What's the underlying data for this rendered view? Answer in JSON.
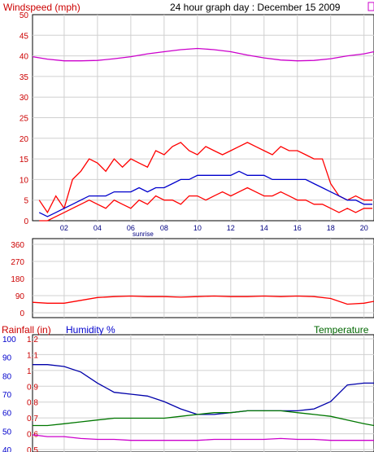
{
  "header": {
    "title": "Windspeed (mph)",
    "subtitle": "24 hour graph day : December 15 2009"
  },
  "labels": {
    "sunrise": "sunrise",
    "rainfall": "Rainfall (in)",
    "humidity": "Humidity %",
    "temperature": "Temperature"
  },
  "colors": {
    "wind": "#ff0000",
    "avg_wind": "#0000cc",
    "pressure": "#cc00cc",
    "humidity": "#0000aa",
    "temperature": "#007700",
    "grid": "#cccccc",
    "axis_red": "#cc0000"
  },
  "chart_data": [
    {
      "type": "line",
      "title": "Windspeed (mph)",
      "subtitle": "24 hour graph day : December 15 2009",
      "x_ticks": [
        "02",
        "04",
        "06",
        "08",
        "10",
        "12",
        "14",
        "16",
        "18",
        "20"
      ],
      "xlim": [
        0.1,
        20.6
      ],
      "ylim": [
        0,
        50
      ],
      "y_ticks": [
        "0",
        "5",
        "10",
        "15",
        "20",
        "25",
        "30",
        "35",
        "40",
        "45",
        "50"
      ],
      "annotation": {
        "text": "sunrise",
        "x": 7.0
      },
      "series": [
        {
          "name": "",
          "color": "#ff0000",
          "x": [
            0.5,
            1.0,
            1.5,
            2.0,
            2.5,
            3.0,
            3.5,
            4.0,
            4.5,
            5.0,
            5.5,
            6.0,
            6.5,
            7.0,
            7.5,
            8.0,
            8.5,
            9.0,
            9.5,
            10.0,
            10.5,
            11.0,
            11.5,
            12.0,
            12.5,
            13.0,
            13.5,
            14.0,
            14.5,
            15.0,
            15.5,
            16.0,
            16.5,
            17.0,
            17.5,
            18.0,
            18.5,
            19.0,
            19.5,
            20.0,
            20.5
          ],
          "values": [
            5,
            2,
            6,
            3,
            10,
            12,
            15,
            14,
            12,
            15,
            13,
            15,
            14,
            13,
            17,
            16,
            18,
            19,
            17,
            16,
            18,
            17,
            16,
            17,
            18,
            19,
            18,
            17,
            16,
            18,
            17,
            17,
            16,
            15,
            15,
            9,
            6,
            5,
            6,
            5,
            5
          ]
        },
        {
          "name": "",
          "color": "#ff0000",
          "x": [
            0.5,
            1.0,
            1.5,
            2.0,
            2.5,
            3.0,
            3.5,
            4.0,
            4.5,
            5.0,
            5.5,
            6.0,
            6.5,
            7.0,
            7.5,
            8.0,
            8.5,
            9.0,
            9.5,
            10.0,
            10.5,
            11.0,
            11.5,
            12.0,
            12.5,
            13.0,
            13.5,
            14.0,
            14.5,
            15.0,
            15.5,
            16.0,
            16.5,
            17.0,
            17.5,
            18.0,
            18.5,
            19.0,
            19.5,
            20.0,
            20.5
          ],
          "values": [
            0,
            0,
            1,
            2,
            3,
            4,
            5,
            4,
            3,
            5,
            4,
            3,
            5,
            4,
            6,
            5,
            5,
            4,
            6,
            6,
            5,
            6,
            7,
            6,
            7,
            8,
            7,
            6,
            6,
            7,
            6,
            5,
            5,
            4,
            4,
            3,
            2,
            3,
            2,
            3,
            3
          ]
        },
        {
          "name": "",
          "color": "#0000cc",
          "x": [
            0.5,
            1.0,
            1.5,
            2.0,
            2.5,
            3.0,
            3.5,
            4.0,
            4.5,
            5.0,
            5.5,
            6.0,
            6.5,
            7.0,
            7.5,
            8.0,
            8.5,
            9.0,
            9.5,
            10.0,
            10.5,
            11.0,
            11.5,
            12.0,
            12.5,
            13.0,
            13.5,
            14.0,
            14.5,
            15.0,
            15.5,
            16.0,
            16.5,
            17.0,
            17.5,
            18.0,
            18.5,
            19.0,
            19.5,
            20.0,
            20.5
          ],
          "values": [
            2,
            1,
            2,
            3,
            4,
            5,
            6,
            6,
            6,
            7,
            7,
            7,
            8,
            7,
            8,
            8,
            9,
            10,
            10,
            11,
            11,
            11,
            11,
            11,
            12,
            11,
            11,
            11,
            10,
            10,
            10,
            10,
            10,
            9,
            8,
            7,
            6,
            5,
            5,
            4,
            4
          ]
        },
        {
          "name": "",
          "color": "#cc00cc",
          "x": [
            0.1,
            1.0,
            2.0,
            3.0,
            4.0,
            5.0,
            6.0,
            7.0,
            8.0,
            9.0,
            10.0,
            11.0,
            12.0,
            13.0,
            14.0,
            15.0,
            16.0,
            17.0,
            18.0,
            19.0,
            20.0,
            20.6
          ],
          "values": [
            39.8,
            39.2,
            38.8,
            38.8,
            38.9,
            39.3,
            39.8,
            40.5,
            41.0,
            41.5,
            41.8,
            41.5,
            41.0,
            40.2,
            39.5,
            39.0,
            38.8,
            38.9,
            39.3,
            40.0,
            40.5,
            41.0
          ]
        }
      ]
    },
    {
      "type": "line",
      "title": "",
      "x_ticks": [
        "02",
        "04",
        "06",
        "08",
        "10",
        "12",
        "14",
        "16",
        "18",
        "20"
      ],
      "xlim": [
        0.1,
        20.6
      ],
      "ylim": [
        0,
        360
      ],
      "y_ticks": [
        "0",
        "90",
        "180",
        "270",
        "360"
      ],
      "series": [
        {
          "name": "",
          "color": "#ff0000",
          "x": [
            0.1,
            1.0,
            2.0,
            3.0,
            4.0,
            5.0,
            6.0,
            7.0,
            8.0,
            9.0,
            10.0,
            11.0,
            12.0,
            13.0,
            14.0,
            15.0,
            16.0,
            17.0,
            18.0,
            19.0,
            20.0,
            20.6
          ],
          "values": [
            55,
            50,
            50,
            65,
            80,
            85,
            88,
            85,
            85,
            82,
            85,
            88,
            85,
            85,
            88,
            85,
            88,
            85,
            75,
            45,
            50,
            60
          ]
        }
      ]
    },
    {
      "type": "line",
      "title": "",
      "xlim": [
        0.1,
        20.6
      ],
      "y_ticks_left_rain": [
        "0.5",
        "0.6",
        "0.7",
        "0.8",
        "0.9",
        "1",
        "1.1",
        "1.2"
      ],
      "y_ticks_left_humidity": [
        "40",
        "50",
        "60",
        "70",
        "80",
        "90",
        "100"
      ],
      "ylim": [
        40,
        100
      ],
      "series": [
        {
          "name": "Humidity %",
          "color": "#0000aa",
          "x": [
            0.1,
            1.0,
            2.0,
            3.0,
            4.0,
            5.0,
            6.0,
            7.0,
            8.0,
            9.0,
            10.0,
            11.0,
            12.0,
            13.0,
            14.0,
            15.0,
            16.0,
            17.0,
            18.0,
            19.0,
            20.0,
            20.6
          ],
          "values": [
            86,
            86,
            85,
            82,
            76,
            71,
            70,
            69,
            66,
            62,
            59,
            59,
            60,
            61,
            61,
            61,
            61,
            62,
            66,
            75,
            76,
            76
          ]
        },
        {
          "name": "Temperature",
          "color": "#007700",
          "x": [
            0.1,
            1.0,
            2.0,
            3.0,
            4.0,
            5.0,
            6.0,
            7.0,
            8.0,
            9.0,
            10.0,
            11.0,
            12.0,
            13.0,
            14.0,
            15.0,
            16.0,
            17.0,
            18.0,
            19.0,
            20.0,
            20.6
          ],
          "values": [
            53,
            53,
            54,
            55,
            56,
            57,
            57,
            57,
            57,
            58,
            59,
            60,
            60,
            61,
            61,
            61,
            60,
            59,
            58,
            56,
            54,
            53
          ]
        },
        {
          "name": "",
          "color": "#cc00cc",
          "x": [
            0.1,
            1.0,
            2.0,
            3.0,
            4.0,
            5.0,
            6.0,
            7.0,
            8.0,
            9.0,
            10.0,
            11.0,
            12.0,
            13.0,
            14.0,
            15.0,
            16.0,
            17.0,
            18.0,
            19.0,
            20.0,
            20.6
          ],
          "values": [
            48,
            47,
            47,
            46,
            45.5,
            45.5,
            45,
            45,
            45,
            45,
            45,
            45.5,
            45.5,
            45.5,
            45.5,
            46,
            45.5,
            45.5,
            45,
            45,
            45,
            45
          ]
        }
      ]
    }
  ]
}
